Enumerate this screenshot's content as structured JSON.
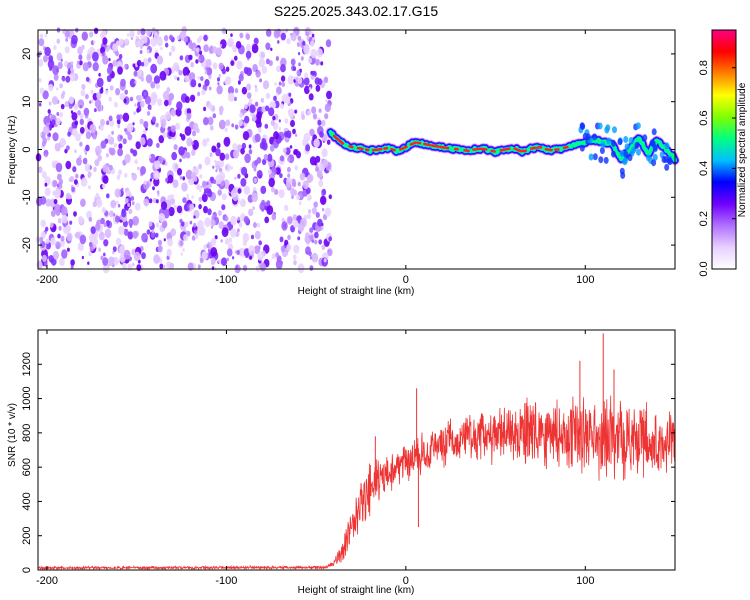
{
  "title": "S225.2025.343.02.17.G15",
  "chart_data": [
    {
      "type": "heatmap",
      "xlabel": "Height of straight line (km)",
      "ylabel": "Frequency (Hz)",
      "xlim": [
        -205,
        150
      ],
      "ylim": [
        -25,
        25
      ],
      "xticks": [
        -200,
        -100,
        0,
        100
      ],
      "yticks": [
        -20,
        -10,
        0,
        10,
        20
      ],
      "noise_region_x": [
        -205,
        -42
      ],
      "signal_trace": {
        "x": [
          -42,
          -35,
          -30,
          -25,
          -20,
          -15,
          -10,
          -5,
          0,
          5,
          10,
          15,
          20,
          25,
          30,
          35,
          40,
          45,
          50,
          55,
          60,
          65,
          70,
          75,
          80,
          85,
          90,
          95,
          100,
          105,
          110,
          115,
          120,
          125,
          130,
          135,
          140,
          145,
          150
        ],
        "y": [
          3.5,
          1.2,
          0.5,
          0.2,
          -0.2,
          0.0,
          0.3,
          -0.3,
          0.5,
          1.5,
          1.2,
          0.8,
          0.5,
          0.2,
          0.0,
          -0.3,
          0.2,
          0.0,
          -0.5,
          0.0,
          0.3,
          -0.5,
          0.2,
          0.5,
          -0.2,
          0.0,
          0.5,
          1.0,
          1.5,
          2.0,
          1.5,
          1.0,
          -2.0,
          0.0,
          2.5,
          -1.0,
          2.0,
          0.0,
          -2.0
        ]
      },
      "colorbar": {
        "label": "Normalized spectral amplitude",
        "range": [
          0,
          0.95
        ],
        "ticks": [
          "0.0",
          "0.2",
          "0.4",
          "0.6",
          "0.8"
        ],
        "colors": [
          "#ffffff",
          "#e8d0ff",
          "#b070ff",
          "#7000ff",
          "#0000ff",
          "#00c0ff",
          "#00ff80",
          "#80ff00",
          "#ffff00",
          "#ff8000",
          "#ff0000",
          "#ff0080"
        ]
      }
    },
    {
      "type": "line",
      "xlabel": "Height of straight line (km)",
      "ylabel": "SNR (10 * v/v)",
      "xlim": [
        -205,
        150
      ],
      "ylim": [
        0,
        1400
      ],
      "xticks": [
        -200,
        -100,
        0,
        100
      ],
      "yticks": [
        0,
        200,
        400,
        600,
        800,
        1000,
        1200
      ],
      "color": "#ee3333",
      "envelope": {
        "x": [
          -205,
          -45,
          -40,
          -35,
          -30,
          -25,
          -20,
          -15,
          -10,
          -5,
          0,
          5,
          10,
          15,
          20,
          25,
          30,
          40,
          50,
          60,
          70,
          80,
          90,
          100,
          110,
          120,
          130,
          140,
          150
        ],
        "mean": [
          12,
          15,
          40,
          120,
          250,
          380,
          460,
          520,
          560,
          600,
          640,
          660,
          690,
          710,
          730,
          740,
          750,
          760,
          780,
          790,
          800,
          800,
          790,
          780,
          770,
          760,
          760,
          750,
          740
        ],
        "spread": [
          10,
          10,
          30,
          80,
          150,
          180,
          180,
          160,
          150,
          140,
          140,
          140,
          140,
          140,
          150,
          160,
          170,
          180,
          200,
          220,
          230,
          240,
          260,
          280,
          280,
          260,
          240,
          220,
          200
        ]
      },
      "spikes": [
        {
          "x": 6,
          "y": 1060
        },
        {
          "x": 110,
          "y": 1380
        },
        {
          "x": 97,
          "y": 1220
        },
        {
          "x": 116,
          "y": 1170
        },
        {
          "x": -17,
          "y": 780
        },
        {
          "x": 7,
          "y": 250
        }
      ]
    }
  ]
}
